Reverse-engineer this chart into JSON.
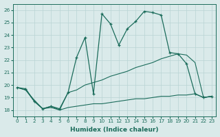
{
  "bg_color": "#daeaea",
  "grid_color": "#b8d4d4",
  "line_color": "#1a6b5a",
  "xlabel": "Humidex (Indice chaleur)",
  "ylim": [
    17.5,
    26.5
  ],
  "xlim": [
    -0.5,
    23.5
  ],
  "yticks": [
    18,
    19,
    20,
    21,
    22,
    23,
    24,
    25,
    26
  ],
  "xticks": [
    0,
    1,
    2,
    3,
    4,
    5,
    6,
    7,
    8,
    9,
    10,
    11,
    12,
    13,
    14,
    15,
    16,
    17,
    18,
    19,
    20,
    21,
    22,
    23
  ],
  "series_jagged_x": [
    0,
    1,
    2,
    3,
    4,
    5,
    6,
    7,
    8,
    9,
    10,
    11,
    12,
    13,
    14,
    15,
    16,
    17,
    18,
    19,
    20,
    21,
    22,
    23
  ],
  "series_jagged_y": [
    19.8,
    19.7,
    18.7,
    18.1,
    18.3,
    18.1,
    19.4,
    22.2,
    23.8,
    19.3,
    25.7,
    24.9,
    23.2,
    24.5,
    25.1,
    25.9,
    25.8,
    25.6,
    22.6,
    22.5,
    21.7,
    19.3,
    19.0,
    19.1
  ],
  "series_upper_x": [
    0,
    1,
    2,
    3,
    4,
    5,
    6,
    7,
    8,
    9,
    10,
    11,
    12,
    13,
    14,
    15,
    16,
    17,
    18,
    19,
    20,
    21,
    22,
    23
  ],
  "series_upper_y": [
    19.8,
    19.6,
    18.8,
    18.1,
    18.3,
    18.0,
    19.4,
    19.6,
    20.0,
    20.2,
    20.4,
    20.7,
    20.9,
    21.1,
    21.4,
    21.6,
    21.8,
    22.1,
    22.3,
    22.5,
    22.4,
    21.8,
    19.0,
    19.1
  ],
  "series_lower_x": [
    0,
    1,
    2,
    3,
    4,
    5,
    6,
    7,
    8,
    9,
    10,
    11,
    12,
    13,
    14,
    15,
    16,
    17,
    18,
    19,
    20,
    21,
    22,
    23
  ],
  "series_lower_y": [
    19.8,
    19.6,
    18.7,
    18.1,
    18.2,
    18.0,
    18.2,
    18.3,
    18.4,
    18.5,
    18.5,
    18.6,
    18.7,
    18.8,
    18.9,
    18.9,
    19.0,
    19.1,
    19.1,
    19.2,
    19.2,
    19.3,
    19.0,
    19.1
  ]
}
